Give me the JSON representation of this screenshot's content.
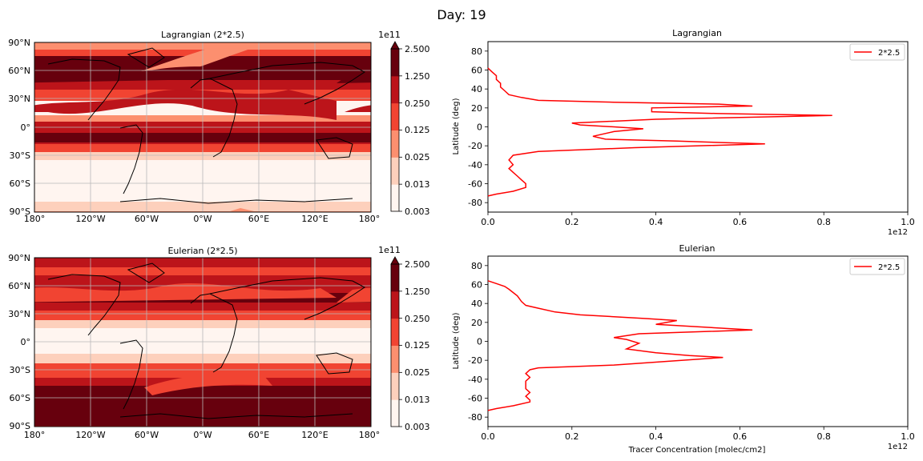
{
  "figure": {
    "suptitle": "Day: 19"
  },
  "map_axes": {
    "lon_ticks": [
      "180°",
      "120°W",
      "60°W",
      "0°W",
      "60°E",
      "120°E",
      "180°"
    ],
    "lat_ticks": [
      "90°N",
      "60°N",
      "30°N",
      "0°",
      "30°S",
      "60°S",
      "90°S"
    ]
  },
  "colorbar": {
    "exponent": "1e11",
    "tick_labels": [
      "2.500",
      "1.250",
      "0.250",
      "0.125",
      "0.025",
      "0.013",
      "0.003"
    ],
    "colors": [
      "#fff5f0",
      "#fdd0bc",
      "#fc8f6f",
      "#f14432",
      "#bc141a",
      "#67000d"
    ]
  },
  "chart_data": [
    {
      "type": "heatmap",
      "title": "Lagrangian (2*2.5)",
      "xlim": [
        -180,
        180
      ],
      "ylim": [
        -90,
        90
      ],
      "levels": [
        0.003,
        0.013,
        0.025,
        0.125,
        0.25,
        1.25,
        2.5
      ],
      "level_multiplier": "1e11"
    },
    {
      "type": "line",
      "title": "Lagrangian",
      "ylabel": "Latitude (deg)",
      "xlabel": "",
      "x_exponent": "1e12",
      "xlim": [
        0,
        1.0
      ],
      "ylim": [
        -90,
        90
      ],
      "x_ticks": [
        "0.0",
        "0.2",
        "0.4",
        "0.6",
        "0.8",
        "1.0"
      ],
      "y_ticks": [
        "80",
        "60",
        "40",
        "20",
        "0",
        "-20",
        "-40",
        "-60",
        "-80"
      ],
      "legend": "top-right",
      "series": [
        {
          "name": "2*2.5",
          "color": "#ff0000",
          "x": [
            0.0,
            0.01,
            0.02,
            0.02,
            0.03,
            0.03,
            0.04,
            0.05,
            0.08,
            0.12,
            0.3,
            0.55,
            0.63,
            0.39,
            0.39,
            0.55,
            0.82,
            0.4,
            0.2,
            0.22,
            0.3,
            0.37,
            0.3,
            0.25,
            0.28,
            0.45,
            0.66,
            0.35,
            0.12,
            0.06,
            0.05,
            0.06,
            0.05,
            0.06,
            0.07,
            0.08,
            0.09,
            0.09,
            0.06,
            0.02,
            0.0
          ],
          "y": [
            62,
            58,
            54,
            50,
            46,
            42,
            38,
            34,
            31,
            28,
            26,
            24,
            22,
            20,
            16,
            14,
            12,
            8,
            4,
            2,
            0,
            -2,
            -5,
            -10,
            -13,
            -15,
            -18,
            -22,
            -26,
            -30,
            -35,
            -40,
            -44,
            -48,
            -52,
            -56,
            -60,
            -64,
            -68,
            -71,
            -73
          ]
        }
      ]
    },
    {
      "type": "heatmap",
      "title": "Eulerian (2*2.5)",
      "xlim": [
        -180,
        180
      ],
      "ylim": [
        -90,
        90
      ],
      "levels": [
        0.003,
        0.013,
        0.025,
        0.125,
        0.25,
        1.25,
        2.5
      ],
      "level_multiplier": "1e11"
    },
    {
      "type": "line",
      "title": "Eulerian",
      "ylabel": "Latitude (deg)",
      "xlabel": "Tracer Concentration [molec/cm2]",
      "x_exponent": "1e12",
      "xlim": [
        0,
        1.0
      ],
      "ylim": [
        -90,
        90
      ],
      "x_ticks": [
        "0.0",
        "0.2",
        "0.4",
        "0.6",
        "0.8",
        "1.0"
      ],
      "y_ticks": [
        "80",
        "60",
        "40",
        "20",
        "0",
        "-20",
        "-40",
        "-60",
        "-80"
      ],
      "legend": "top-right",
      "series": [
        {
          "name": "2*2.5",
          "color": "#ff0000",
          "x": [
            0.0,
            0.02,
            0.04,
            0.05,
            0.07,
            0.08,
            0.09,
            0.12,
            0.16,
            0.22,
            0.3,
            0.38,
            0.45,
            0.4,
            0.63,
            0.36,
            0.3,
            0.33,
            0.36,
            0.33,
            0.4,
            0.48,
            0.56,
            0.3,
            0.12,
            0.1,
            0.09,
            0.1,
            0.09,
            0.09,
            0.09,
            0.1,
            0.09,
            0.1,
            0.1,
            0.06,
            0.02,
            0.0
          ],
          "y": [
            64,
            61,
            58,
            55,
            48,
            42,
            38,
            35,
            31,
            28,
            26,
            24,
            22,
            18,
            12,
            8,
            4,
            2,
            -2,
            -8,
            -12,
            -15,
            -17,
            -25,
            -28,
            -30,
            -34,
            -38,
            -42,
            -46,
            -50,
            -54,
            -58,
            -62,
            -64,
            -68,
            -71,
            -73
          ]
        }
      ]
    }
  ]
}
